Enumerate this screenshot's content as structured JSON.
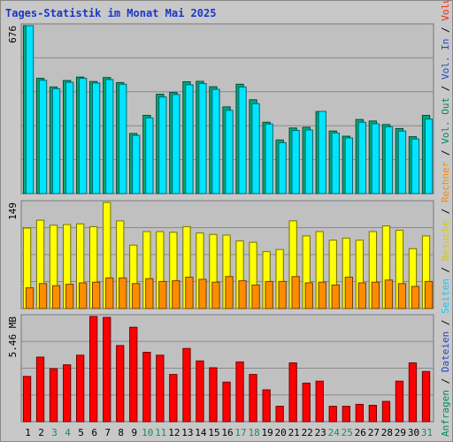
{
  "chart_data": {
    "title": "Tages-Statistik im Monat Mai 2025",
    "type": "bar",
    "categories": [
      "1",
      "2",
      "3",
      "4",
      "5",
      "6",
      "7",
      "8",
      "9",
      "10",
      "11",
      "12",
      "13",
      "14",
      "15",
      "16",
      "17",
      "18",
      "19",
      "20",
      "21",
      "22",
      "23",
      "24",
      "25",
      "26",
      "27",
      "28",
      "29",
      "30",
      "31"
    ],
    "weekend_categories": [
      "3",
      "4",
      "10",
      "11",
      "17",
      "18",
      "24",
      "25",
      "31"
    ],
    "panels": {
      "top": {
        "max_label": "676",
        "ylim": [
          0,
          676
        ],
        "series": [
          {
            "name": "Anfragen",
            "color": "#00aa77",
            "values": [
              676,
              464,
              429,
              455,
              469,
              451,
              467,
              447,
              242,
              315,
              400,
              407,
              450,
              452,
              430,
              349,
              440,
              378,
              287,
              216,
              264,
              267,
              330,
              252,
              231,
              298,
              292,
              278,
              262,
              229,
              315
            ]
          },
          {
            "name": "Seiten",
            "color": "#00e5ff",
            "values": [
              676,
              456,
              422,
              448,
              464,
              445,
              459,
              440,
              234,
              305,
              389,
              399,
              438,
              443,
              420,
              335,
              429,
              362,
              280,
              205,
              254,
              256,
              331,
              244,
              224,
              287,
              281,
              269,
              252,
              220,
              300
            ]
          }
        ]
      },
      "middle": {
        "max_label": "149",
        "ylim": [
          0,
          149
        ],
        "series": [
          {
            "name": "Besuche",
            "color": "#ffff00",
            "values": [
              113,
              124,
              117,
              118,
              119,
              115,
              149,
              123,
              89,
              108,
              108,
              107,
              115,
              106,
              104,
              103,
              95,
              93,
              80,
              83,
              123,
              102,
              108,
              96,
              99,
              96,
              108,
              116,
              110,
              84,
              102
            ]
          },
          {
            "name": "Rechner",
            "color": "#ff8c00",
            "values": [
              29,
              35,
              32,
              34,
              36,
              37,
              43,
              43,
              35,
              42,
              38,
              39,
              44,
              41,
              37,
              45,
              39,
              33,
              38,
              38,
              45,
              36,
              37,
              33,
              44,
              36,
              37,
              40,
              35,
              31,
              38
            ]
          }
        ]
      },
      "bottom": {
        "max_label": "5.46 MB",
        "ylim": [
          0,
          5.46
        ],
        "series": [
          {
            "name": "Volumen",
            "color": "#ff0000",
            "values": [
              2.35,
              3.35,
              2.75,
              2.95,
              3.45,
              5.46,
              5.41,
              3.95,
              4.9,
              3.6,
              3.45,
              2.45,
              3.8,
              3.15,
              2.8,
              2.05,
              3.1,
              2.45,
              1.65,
              0.8,
              3.05,
              2.0,
              2.1,
              0.8,
              0.8,
              0.9,
              0.85,
              1.05,
              2.1,
              3.05,
              2.6
            ]
          }
        ]
      }
    },
    "right_legend": [
      {
        "text": "Anfragen",
        "color": "#008866"
      },
      {
        "text": "Dateien",
        "color": "#2244cc"
      },
      {
        "text": "Seiten",
        "color": "#00ccff"
      },
      {
        "text": "Besuche",
        "color": "#d8c800"
      },
      {
        "text": "Rechner",
        "color": "#ff8800"
      },
      {
        "text": "Vol. Out",
        "color": "#008866"
      },
      {
        "text": "Vol. In",
        "color": "#2244cc"
      },
      {
        "text": "Volumen",
        "color": "#ff2200"
      }
    ]
  }
}
